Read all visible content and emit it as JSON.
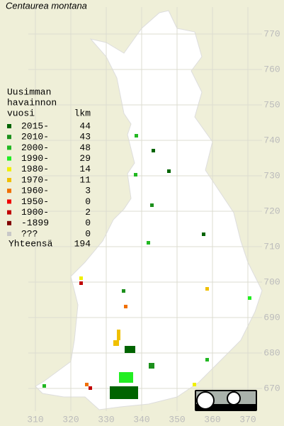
{
  "title": "Centaurea montana",
  "legend": {
    "heading": [
      "Uusimman",
      "havainnon",
      "vuosi"
    ],
    "count_heading": "lkm",
    "rows": [
      {
        "label": "2015-",
        "count": 44,
        "color": "#006400"
      },
      {
        "label": "2010-",
        "count": 43,
        "color": "#1c901c"
      },
      {
        "label": "2000-",
        "count": 48,
        "color": "#22b822"
      },
      {
        "label": "1990-",
        "count": 29,
        "color": "#22ee22"
      },
      {
        "label": "1980-",
        "count": 14,
        "color": "#f0f000"
      },
      {
        "label": "1970-",
        "count": 11,
        "color": "#f0c000"
      },
      {
        "label": "1960-",
        "count": 3,
        "color": "#f07000"
      },
      {
        "label": "1950-",
        "count": 0,
        "color": "#f00000"
      },
      {
        "label": "1900-",
        "count": 2,
        "color": "#c00000"
      },
      {
        "label": "-1899",
        "count": 0,
        "color": "#800000"
      },
      {
        "label": "???",
        "count": 0,
        "color": "#c8c8c8"
      }
    ],
    "total_label": "Yhteensä",
    "total": 194
  },
  "x_ticks": [
    310,
    320,
    330,
    340,
    350,
    360,
    370
  ],
  "y_ticks": [
    670,
    680,
    690,
    700,
    710,
    720,
    730,
    740,
    750,
    760,
    770
  ]
}
